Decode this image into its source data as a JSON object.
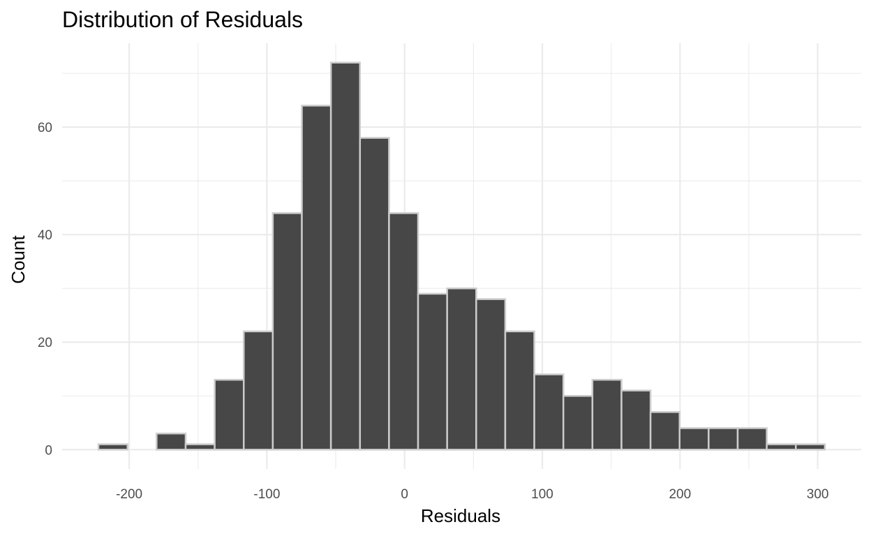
{
  "chart_data": {
    "type": "bar",
    "subtype": "histogram",
    "title": "Distribution of Residuals",
    "xlabel": "Residuals",
    "ylabel": "Count",
    "bin_width": 21.1,
    "bins": [
      {
        "x0": -222.3,
        "x1": -201.2,
        "count": 1
      },
      {
        "x0": -201.2,
        "x1": -180.1,
        "count": 0
      },
      {
        "x0": -180.1,
        "x1": -159.0,
        "count": 3
      },
      {
        "x0": -159.0,
        "x1": -137.9,
        "count": 1
      },
      {
        "x0": -137.9,
        "x1": -116.8,
        "count": 13
      },
      {
        "x0": -116.8,
        "x1": -95.7,
        "count": 22
      },
      {
        "x0": -95.7,
        "x1": -74.6,
        "count": 44
      },
      {
        "x0": -74.6,
        "x1": -53.5,
        "count": 64
      },
      {
        "x0": -53.5,
        "x1": -32.4,
        "count": 72
      },
      {
        "x0": -32.4,
        "x1": -11.3,
        "count": 58
      },
      {
        "x0": -11.3,
        "x1": 9.8,
        "count": 44
      },
      {
        "x0": 9.8,
        "x1": 30.9,
        "count": 29
      },
      {
        "x0": 30.9,
        "x1": 52.0,
        "count": 30
      },
      {
        "x0": 52.0,
        "x1": 73.1,
        "count": 28
      },
      {
        "x0": 73.1,
        "x1": 94.2,
        "count": 22
      },
      {
        "x0": 94.2,
        "x1": 115.3,
        "count": 14
      },
      {
        "x0": 115.3,
        "x1": 136.4,
        "count": 10
      },
      {
        "x0": 136.4,
        "x1": 157.5,
        "count": 13
      },
      {
        "x0": 157.5,
        "x1": 178.6,
        "count": 11
      },
      {
        "x0": 178.6,
        "x1": 199.7,
        "count": 7
      },
      {
        "x0": 199.7,
        "x1": 220.8,
        "count": 4
      },
      {
        "x0": 220.8,
        "x1": 241.9,
        "count": 4
      },
      {
        "x0": 241.9,
        "x1": 263.0,
        "count": 4
      },
      {
        "x0": 263.0,
        "x1": 284.1,
        "count": 1
      },
      {
        "x0": 284.1,
        "x1": 305.2,
        "count": 1
      }
    ],
    "xlim": [
      -248.7,
      331.6
    ],
    "ylim": [
      -3.6,
      75.6
    ],
    "x_ticks": [
      -200,
      -100,
      0,
      100,
      200,
      300
    ],
    "x_tick_labels": [
      "-200",
      "-100",
      "0",
      "100",
      "200",
      "300"
    ],
    "y_ticks": [
      0,
      20,
      40,
      60
    ],
    "y_tick_labels": [
      "0",
      "20",
      "40",
      "60"
    ],
    "grid": true,
    "legend": "none",
    "colors": {
      "bar_fill": "#474747",
      "bar_outline": "#cccccc",
      "grid": "#ebebeb",
      "background": "#ffffff"
    }
  }
}
